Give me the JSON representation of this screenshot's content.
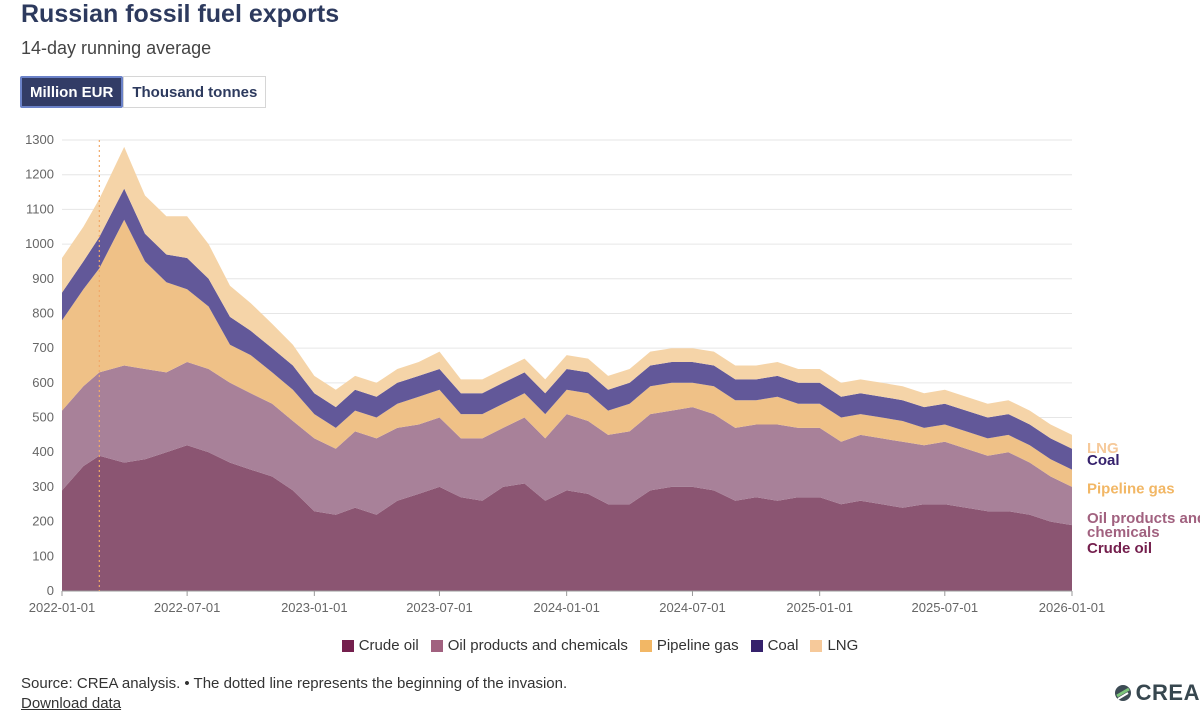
{
  "title": "Russian fossil fuel exports",
  "subtitle": "14-day running average",
  "toggle": {
    "active": "Million EUR",
    "inactive": "Thousand tonnes"
  },
  "source": "Source: CREA analysis. • The dotted line represents the beginning of the invasion.",
  "download": "Download data",
  "logo": "CREA",
  "colors": {
    "crude": "#8b5572",
    "oil_products": "#a88199",
    "pipeline": "#efc187",
    "coal": "#625899",
    "lng": "#f5d4a8",
    "crude_legend": "#741f4d",
    "oil_products_legend": "#a1617f",
    "pipeline_legend": "#f2b765",
    "coal_legend": "#35216c",
    "lng_legend": "#f6c99a"
  },
  "chart_data": {
    "type": "area",
    "stacked": true,
    "title": "Russian fossil fuel exports",
    "ylabel": "Million EUR",
    "ylim": [
      0,
      1300
    ],
    "yticks": [
      0,
      100,
      200,
      300,
      400,
      500,
      600,
      700,
      800,
      900,
      1000,
      1100,
      1200,
      1300
    ],
    "xlim": [
      "2022-01-01",
      "2026-01-01"
    ],
    "xticks": [
      "2022-01-01",
      "2022-07-01",
      "2023-01-01",
      "2023-07-01",
      "2024-01-01",
      "2024-07-01",
      "2025-01-01",
      "2025-07-01",
      "2026-01-01"
    ],
    "invasion_date": "2022-02-24",
    "x": [
      "2022-01-01",
      "2022-02-01",
      "2022-02-24",
      "2022-04-01",
      "2022-05-01",
      "2022-06-01",
      "2022-07-01",
      "2022-08-01",
      "2022-09-01",
      "2022-10-01",
      "2022-11-01",
      "2022-12-01",
      "2023-01-01",
      "2023-02-01",
      "2023-03-01",
      "2023-04-01",
      "2023-05-01",
      "2023-06-01",
      "2023-07-01",
      "2023-08-01",
      "2023-09-01",
      "2023-10-01",
      "2023-11-01",
      "2023-12-01",
      "2024-01-01",
      "2024-02-01",
      "2024-03-01",
      "2024-04-01",
      "2024-05-01",
      "2024-06-01",
      "2024-07-01",
      "2024-08-01",
      "2024-09-01",
      "2024-10-01",
      "2024-11-01",
      "2024-12-01",
      "2025-01-01",
      "2025-02-01",
      "2025-03-01",
      "2025-04-01",
      "2025-05-01",
      "2025-06-01",
      "2025-07-01",
      "2025-08-01",
      "2025-09-01",
      "2025-10-01",
      "2025-11-01",
      "2025-12-01",
      "2026-01-01"
    ],
    "series": [
      {
        "name": "Crude oil",
        "label": "Crude oil",
        "values": [
          290,
          360,
          390,
          370,
          380,
          400,
          420,
          400,
          370,
          350,
          330,
          290,
          230,
          220,
          240,
          220,
          260,
          280,
          300,
          270,
          260,
          300,
          310,
          260,
          290,
          280,
          250,
          250,
          290,
          300,
          300,
          290,
          260,
          270,
          260,
          270,
          270,
          250,
          260,
          250,
          240,
          250,
          250,
          240,
          230,
          230,
          220,
          200,
          190
        ]
      },
      {
        "name": "Oil products and chemicals",
        "label": "Oil products and chemicals",
        "values": [
          230,
          230,
          240,
          280,
          260,
          230,
          240,
          240,
          230,
          220,
          210,
          200,
          210,
          190,
          220,
          220,
          210,
          200,
          200,
          170,
          180,
          170,
          190,
          180,
          220,
          210,
          200,
          210,
          220,
          220,
          230,
          220,
          210,
          210,
          220,
          200,
          200,
          180,
          190,
          190,
          190,
          170,
          180,
          170,
          160,
          170,
          150,
          130,
          110
        ]
      },
      {
        "name": "Pipeline gas",
        "label": "Pipeline gas",
        "values": [
          260,
          280,
          300,
          420,
          310,
          260,
          210,
          180,
          110,
          110,
          90,
          90,
          70,
          60,
          60,
          60,
          70,
          80,
          80,
          70,
          70,
          70,
          70,
          70,
          70,
          80,
          70,
          80,
          80,
          80,
          70,
          80,
          80,
          70,
          80,
          70,
          70,
          70,
          60,
          60,
          60,
          50,
          50,
          50,
          50,
          50,
          50,
          50,
          50
        ]
      },
      {
        "name": "Coal",
        "label": "Coal",
        "values": [
          80,
          80,
          90,
          90,
          80,
          80,
          90,
          80,
          80,
          70,
          70,
          70,
          60,
          60,
          60,
          60,
          60,
          60,
          60,
          60,
          60,
          60,
          60,
          60,
          60,
          60,
          60,
          60,
          60,
          60,
          60,
          60,
          60,
          60,
          60,
          60,
          60,
          60,
          60,
          60,
          60,
          60,
          60,
          60,
          60,
          60,
          60,
          60,
          60
        ]
      },
      {
        "name": "LNG",
        "label": "LNG",
        "values": [
          100,
          100,
          110,
          120,
          110,
          110,
          120,
          100,
          90,
          80,
          70,
          60,
          50,
          50,
          40,
          40,
          40,
          40,
          50,
          40,
          40,
          40,
          40,
          40,
          40,
          40,
          40,
          40,
          40,
          40,
          40,
          40,
          40,
          40,
          40,
          40,
          40,
          40,
          40,
          40,
          40,
          40,
          40,
          40,
          40,
          40,
          40,
          40,
          40
        ]
      }
    ]
  }
}
